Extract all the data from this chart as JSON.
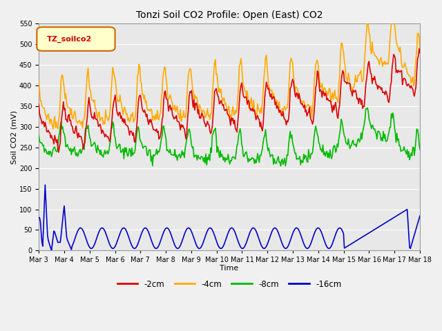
{
  "title": "Tonzi Soil CO2 Profile: Open (East) CO2",
  "xlabel": "Time",
  "ylabel": "Soil CO2 (mV)",
  "ylim": [
    0,
    550
  ],
  "yticks": [
    0,
    50,
    100,
    150,
    200,
    250,
    300,
    350,
    400,
    450,
    500,
    550
  ],
  "legend_label": "TZ_soilco2",
  "series_labels": [
    "-2cm",
    "-4cm",
    "-8cm",
    "-16cm"
  ],
  "series_colors": [
    "#dd0000",
    "#ffaa00",
    "#00bb00",
    "#0000cc"
  ],
  "x_tick_labels": [
    "Mar 3",
    "Mar 4",
    "Mar 5",
    "Mar 6",
    "Mar 7",
    "Mar 8",
    "Mar 9",
    "Mar 10",
    "Mar 11",
    "Mar 12",
    "Mar 13",
    "Mar 14",
    "Mar 15",
    "Mar 16",
    "Mar 17",
    "Mar 18"
  ],
  "background_color": "#e8e8e8",
  "grid_color": "#ffffff",
  "fig_facecolor": "#f0f0f0"
}
